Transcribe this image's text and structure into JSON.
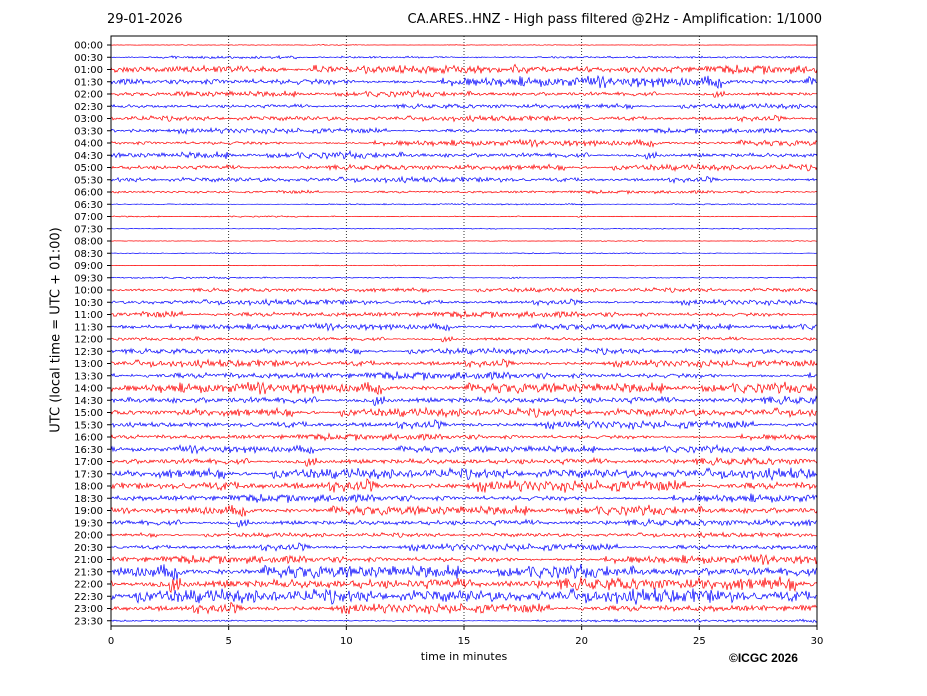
{
  "header": {
    "date": "29-01-2026",
    "title": "CA.ARES..HNZ - High pass filtered @2Hz - Amplification: 1/1000"
  },
  "footer": {
    "copyright": "©ICGC 2026"
  },
  "colors": {
    "odd_trace": "#ff0000",
    "even_trace": "#0000ff",
    "grid": "#000000"
  },
  "chart_data": {
    "type": "line",
    "title": "CA.ARES..HNZ - High pass filtered @2Hz - Amplification: 1/1000",
    "xlabel": "time in minutes",
    "ylabel": "UTC (local time = UTC + 01:00)",
    "xlim": [
      0,
      30
    ],
    "x_ticks": [
      0,
      5,
      10,
      15,
      20,
      25,
      30
    ],
    "grid": "vertical dotted lines at x ticks",
    "rows": [
      "00:00",
      "00:30",
      "01:00",
      "01:30",
      "02:00",
      "02:30",
      "03:00",
      "03:30",
      "04:00",
      "04:30",
      "05:00",
      "05:30",
      "06:00",
      "06:30",
      "07:00",
      "07:30",
      "08:00",
      "08:30",
      "09:00",
      "09:30",
      "10:00",
      "10:30",
      "11:00",
      "11:30",
      "12:00",
      "12:30",
      "13:00",
      "13:30",
      "14:00",
      "14:30",
      "15:00",
      "15:30",
      "16:00",
      "16:30",
      "17:00",
      "17:30",
      "18:00",
      "18:30",
      "19:00",
      "19:30",
      "20:00",
      "20:30",
      "21:00",
      "21:30",
      "22:00",
      "22:30",
      "23:00",
      "23:30"
    ],
    "row_colors": "alternating red (even index) and blue (odd index)",
    "relative_amplitude": [
      0.05,
      0.15,
      0.55,
      0.6,
      0.35,
      0.3,
      0.3,
      0.3,
      0.35,
      0.4,
      0.35,
      0.3,
      0.2,
      0.08,
      0.08,
      0.05,
      0.05,
      0.06,
      0.05,
      0.1,
      0.25,
      0.3,
      0.4,
      0.35,
      0.3,
      0.35,
      0.4,
      0.5,
      0.6,
      0.55,
      0.5,
      0.45,
      0.4,
      0.4,
      0.5,
      0.6,
      0.65,
      0.5,
      0.55,
      0.45,
      0.25,
      0.4,
      0.5,
      0.75,
      0.85,
      0.8,
      0.55,
      0.15
    ]
  }
}
